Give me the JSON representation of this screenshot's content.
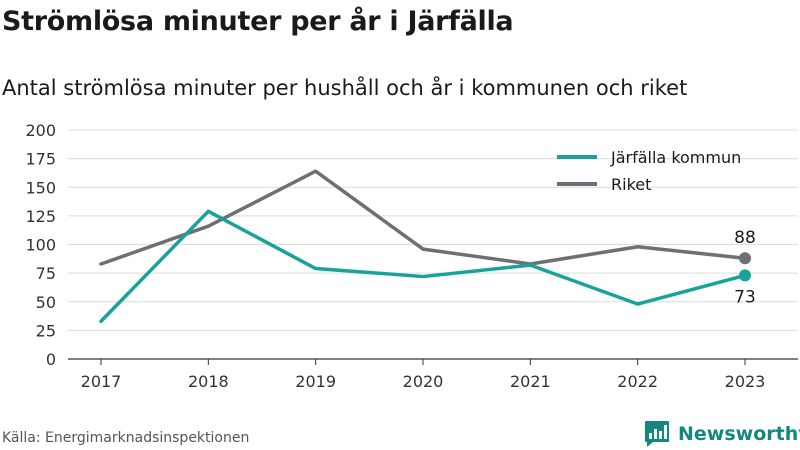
{
  "chart_data": {
    "type": "line",
    "title": "Strömlösa minuter per år i Järfälla",
    "subtitle": "Antal strömlösa minuter per hushåll och år i kommunen och riket",
    "xlabel": "",
    "ylabel": "",
    "categories": [
      "2017",
      "2018",
      "2019",
      "2020",
      "2021",
      "2022",
      "2023"
    ],
    "ylim": [
      0,
      200
    ],
    "yticks": [
      0,
      25,
      50,
      75,
      100,
      125,
      150,
      175,
      200
    ],
    "grid": true,
    "legend_position": "top-right",
    "series": [
      {
        "name": "Järfälla kommun",
        "color": "#17a398",
        "values": [
          33,
          129,
          79,
          72,
          82,
          48,
          73
        ],
        "end_label": "73"
      },
      {
        "name": "Riket",
        "color": "#6e6e73",
        "values": [
          83,
          116,
          164,
          96,
          83,
          98,
          88
        ],
        "end_label": "88"
      }
    ]
  },
  "source": "Källa: Energimarknadsinspektionen",
  "brand": {
    "name": "Newsworthy",
    "icon": "newsworthy-logo-icon",
    "color": "#14877f"
  }
}
